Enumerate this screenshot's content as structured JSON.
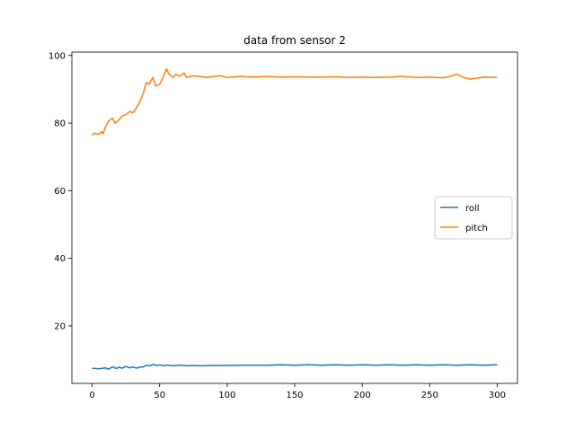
{
  "chart_data": {
    "type": "line",
    "title": "data from sensor 2",
    "xlabel": "",
    "ylabel": "",
    "xlim": [
      -15,
      315
    ],
    "ylim": [
      3,
      101
    ],
    "xticks": [
      0,
      50,
      100,
      150,
      200,
      250,
      300
    ],
    "yticks": [
      20,
      40,
      60,
      80,
      100
    ],
    "grid": false,
    "legend_position": "center-right",
    "series": [
      {
        "name": "roll",
        "color": "#1f77b4",
        "x": [
          0,
          5,
          10,
          12,
          15,
          18,
          20,
          22,
          25,
          28,
          30,
          33,
          35,
          38,
          40,
          43,
          45,
          48,
          50,
          53,
          55,
          58,
          60,
          65,
          70,
          75,
          80,
          90,
          100,
          110,
          120,
          130,
          140,
          150,
          160,
          170,
          180,
          190,
          200,
          210,
          220,
          230,
          240,
          250,
          260,
          270,
          280,
          290,
          300
        ],
        "values": [
          7.5,
          7.3,
          7.6,
          7.2,
          7.9,
          7.4,
          7.8,
          7.5,
          8.0,
          7.6,
          7.9,
          7.5,
          7.8,
          7.9,
          8.4,
          8.2,
          8.6,
          8.3,
          8.5,
          8.2,
          8.4,
          8.3,
          8.2,
          8.4,
          8.2,
          8.3,
          8.2,
          8.3,
          8.3,
          8.4,
          8.4,
          8.4,
          8.5,
          8.4,
          8.5,
          8.4,
          8.5,
          8.4,
          8.5,
          8.4,
          8.5,
          8.4,
          8.5,
          8.4,
          8.5,
          8.4,
          8.5,
          8.4,
          8.5
        ]
      },
      {
        "name": "pitch",
        "color": "#ff7f0e",
        "x": [
          0,
          2,
          5,
          7,
          8,
          10,
          12,
          15,
          17,
          20,
          22,
          25,
          28,
          30,
          32,
          35,
          38,
          40,
          42,
          45,
          47,
          50,
          52,
          55,
          57,
          60,
          62,
          65,
          68,
          70,
          75,
          80,
          85,
          90,
          95,
          100,
          110,
          120,
          130,
          140,
          150,
          160,
          170,
          180,
          190,
          200,
          210,
          220,
          230,
          240,
          250,
          260,
          265,
          270,
          275,
          280,
          290,
          300
        ],
        "values": [
          76.5,
          77.0,
          76.7,
          77.5,
          76.8,
          79.0,
          80.5,
          81.5,
          80.0,
          81.0,
          82.0,
          82.5,
          83.5,
          83.0,
          84.0,
          86.0,
          89.0,
          92.0,
          91.5,
          93.5,
          91.0,
          91.5,
          93.0,
          96.0,
          94.5,
          93.5,
          94.5,
          93.8,
          94.8,
          93.5,
          94.0,
          93.8,
          93.5,
          93.8,
          94.0,
          93.5,
          93.8,
          93.6,
          93.8,
          93.6,
          93.7,
          93.6,
          93.6,
          93.7,
          93.5,
          93.6,
          93.5,
          93.6,
          93.8,
          93.5,
          93.6,
          93.4,
          93.8,
          94.5,
          93.5,
          93.0,
          93.6,
          93.5
        ]
      }
    ]
  }
}
